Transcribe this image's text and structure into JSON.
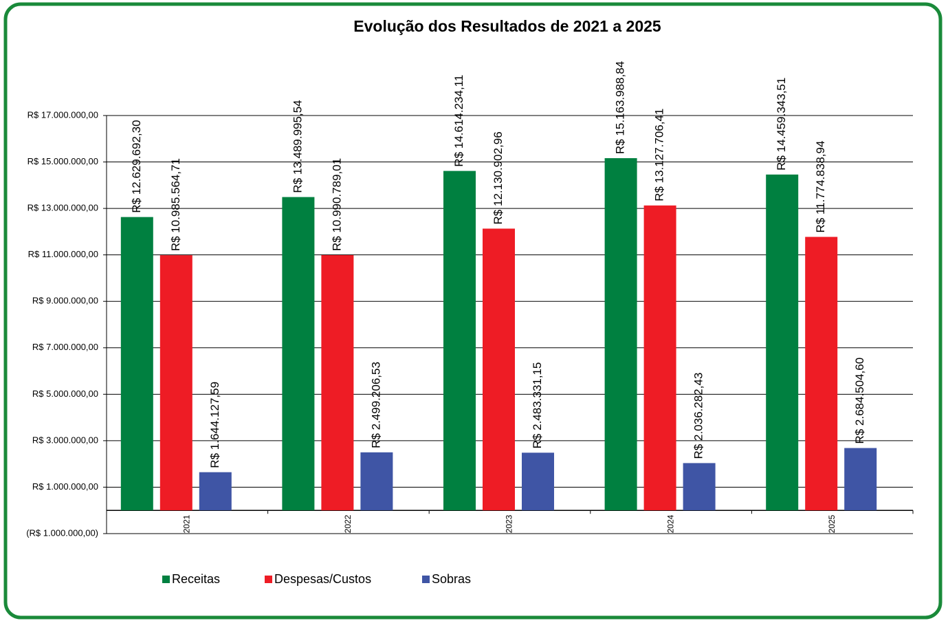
{
  "chart_data": {
    "type": "bar",
    "title": "Evolução dos Resultados de 2021 a 2025",
    "categories": [
      "2021",
      "2022",
      "2023",
      "2024",
      "2025"
    ],
    "series": [
      {
        "name": "Receitas",
        "color": "#008040",
        "values": [
          12629692.3,
          13489995.54,
          14614234.11,
          15163988.84,
          14459343.51
        ],
        "value_labels": [
          "R$ 12.629.692,30",
          "R$ 13.489.995,54",
          "R$ 14.614.234,11",
          "R$ 15.163.988,84",
          "R$ 14.459.343,51"
        ]
      },
      {
        "name": "Despesas/Custos",
        "color": "#ee1c25",
        "values": [
          10985564.71,
          10990789.01,
          12130902.96,
          13127706.41,
          11774838.94
        ],
        "value_labels": [
          "R$ 10.985.564,71",
          "R$ 10.990.789,01",
          "R$ 12.130.902,96",
          "R$ 13.127.706,41",
          "R$ 11.774.838,94"
        ]
      },
      {
        "name": "Sobras",
        "color": "#3f55a5",
        "values": [
          1644127.59,
          2499206.53,
          2483331.15,
          2036282.43,
          2684504.6
        ],
        "value_labels": [
          "R$ 1.644.127,59",
          "R$ 2.499.206,53",
          "R$ 2.483.331,15",
          "R$ 2.036.282,43",
          "R$ 2.684.504,60"
        ]
      }
    ],
    "ylim": [
      -1000000,
      17000000
    ],
    "yticks": [
      {
        "value": -1000000,
        "label": "(R$ 1.000.000,00)"
      },
      {
        "value": 1000000,
        "label": "R$ 1.000.000,00"
      },
      {
        "value": 3000000,
        "label": "R$ 3.000.000,00"
      },
      {
        "value": 5000000,
        "label": "R$ 5.000.000,00"
      },
      {
        "value": 7000000,
        "label": "R$ 7.000.000,00"
      },
      {
        "value": 9000000,
        "label": "R$ 9.000.000,00"
      },
      {
        "value": 11000000,
        "label": "R$ 11.000.000,00"
      },
      {
        "value": 13000000,
        "label": "R$ 13.000.000,00"
      },
      {
        "value": 15000000,
        "label": "R$ 15.000.000,00"
      },
      {
        "value": 17000000,
        "label": "R$ 17.000.000,00"
      }
    ],
    "grid": true,
    "legend": "bottom"
  }
}
